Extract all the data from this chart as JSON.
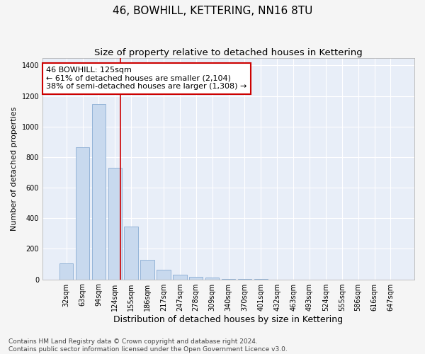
{
  "title": "46, BOWHILL, KETTERING, NN16 8TU",
  "subtitle": "Size of property relative to detached houses in Kettering",
  "xlabel": "Distribution of detached houses by size in Kettering",
  "ylabel": "Number of detached properties",
  "categories": [
    "32sqm",
    "63sqm",
    "94sqm",
    "124sqm",
    "155sqm",
    "186sqm",
    "217sqm",
    "247sqm",
    "278sqm",
    "309sqm",
    "340sqm",
    "370sqm",
    "401sqm",
    "432sqm",
    "463sqm",
    "493sqm",
    "524sqm",
    "555sqm",
    "586sqm",
    "616sqm",
    "647sqm"
  ],
  "values": [
    105,
    865,
    1145,
    730,
    345,
    130,
    62,
    32,
    18,
    10,
    5,
    4,
    2,
    0,
    0,
    0,
    0,
    0,
    0,
    0,
    0
  ],
  "bar_color": "#c8d9ee",
  "bar_edge_color": "#8aadd4",
  "background_color": "#e8eef8",
  "grid_color": "#ffffff",
  "red_line_index": 3,
  "annotation_text": "46 BOWHILL: 125sqm\n← 61% of detached houses are smaller (2,104)\n38% of semi-detached houses are larger (1,308) →",
  "annotation_box_color": "#ffffff",
  "annotation_box_edge": "#cc0000",
  "ylim": [
    0,
    1450
  ],
  "yticks": [
    0,
    200,
    400,
    600,
    800,
    1000,
    1200,
    1400
  ],
  "footnote": "Contains HM Land Registry data © Crown copyright and database right 2024.\nContains public sector information licensed under the Open Government Licence v3.0.",
  "title_fontsize": 11,
  "subtitle_fontsize": 9.5,
  "xlabel_fontsize": 9,
  "ylabel_fontsize": 8,
  "tick_fontsize": 7,
  "annotation_fontsize": 8,
  "footnote_fontsize": 6.5
}
